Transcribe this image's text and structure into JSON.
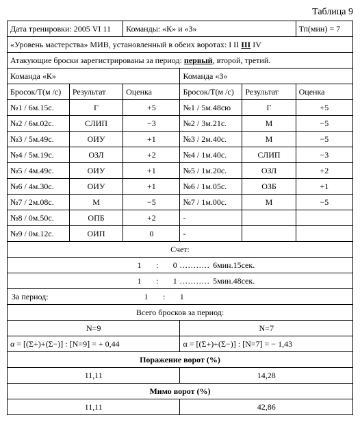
{
  "title": "Таблица 9",
  "header": {
    "line1_left": "Дата тренировки: 2005  VI  11",
    "line1_mid": "Команды:  «К»  и  «З»",
    "line1_right": "Тп(мин) = 7",
    "line2": "«Уровень мастерства»  МИВ, установленный в обеих воротах: I  II  ",
    "line2_ul": "III",
    "line2_after": "  IV",
    "line3_a": "Атакующие броски зарегистрированы за период: ",
    "line3_b": "первый",
    "line3_c": ", второй, третий."
  },
  "teams": {
    "k": "Команда «К»",
    "z": "Команда «З»"
  },
  "cols": {
    "throw": "Бросок/Т(м /с)",
    "result": "Результат",
    "score": "Оценка"
  },
  "k_rows": [
    {
      "t": "№1 / 6м.15с.",
      "r": "Г",
      "s": "+5"
    },
    {
      "t": "№2 / 6м.02с.",
      "r": "СЛИП",
      "s": "−3"
    },
    {
      "t": "№3 / 5м.49с.",
      "r": "ОИУ",
      "s": "+1"
    },
    {
      "t": "№4 / 5м.19с.",
      "r": "ОЗЛ",
      "s": "+2"
    },
    {
      "t": "№5 / 4м.49с.",
      "r": "ОИУ",
      "s": "+1"
    },
    {
      "t": "№6 / 4м.30с.",
      "r": "ОИУ",
      "s": "+1"
    },
    {
      "t": "№7 / 2м.08с.",
      "r": "М",
      "s": "−5"
    },
    {
      "t": "№8 / 0м.50с.",
      "r": "ОПБ",
      "s": "+2"
    },
    {
      "t": "№9 / 0м.12с.",
      "r": "ОИП",
      "s": "0"
    }
  ],
  "z_rows": [
    {
      "t": "№1 / 5м.48сю",
      "r": "Г",
      "s": "+5"
    },
    {
      "t": "№2 / 3м.21с.",
      "r": "М",
      "s": "−5"
    },
    {
      "t": "№3 / 2м.40с.",
      "r": "М",
      "s": "−5"
    },
    {
      "t": "№4 / 1м.40с.",
      "r": "СЛИП",
      "s": "−3"
    },
    {
      "t": "№5 / 1м.20с.",
      "r": "ОЗЛ",
      "s": "+2"
    },
    {
      "t": "№6 / 1м.05с.",
      "r": "ОЗБ",
      "s": "+1"
    },
    {
      "t": "№7 / 1м.00с.",
      "r": "М",
      "s": "−5"
    },
    {
      "t": "-",
      "r": "",
      "s": ""
    },
    {
      "t": "-",
      "r": "",
      "s": ""
    }
  ],
  "score": {
    "label": "Счет:",
    "row1_l": "1",
    "row1_m": ":",
    "row1_r": "0",
    "row1_time": "6мин.15сек.",
    "row2_l": "1",
    "row2_m": ":",
    "row2_r": "1",
    "row2_time": "5мин.48сек.",
    "row3_label": "За  период:",
    "row3_l": "1",
    "row3_m": ":",
    "row3_r": "1"
  },
  "totals": {
    "label": "Всего бросков за период:",
    "nk": "N=9",
    "nz": "N=7",
    "alpha_k": "α  = [(Σ+)+(Σ−)] : [N=9]  =  + 0,44",
    "alpha_z": "α  = [(Σ+)+(Σ−)] : [N=7]   =  − 1,43"
  },
  "goal": {
    "label": "Поражение ворот (%)",
    "k": "11,11",
    "z": "14,28"
  },
  "miss": {
    "label": "Мимо ворот (%)",
    "k": "11,11",
    "z": "42,86"
  }
}
